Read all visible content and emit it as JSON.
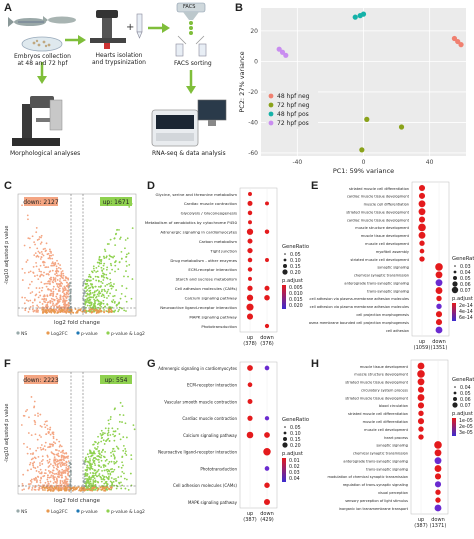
{
  "panel_a": {
    "letter": "A",
    "labels": {
      "embryo": "Embryos collection\nat 48 and 72 hpf",
      "hearts": "Hearts isolation\nand trypsinization",
      "facs": "FACS sorting",
      "facs_top": "FACS",
      "gfp": "GFP",
      "morph": "Morphological analyses",
      "rnaseq": "RNA-seq & data analysis"
    }
  },
  "panel_b": {
    "letter": "B",
    "chart_data": {
      "type": "scatter",
      "xlabel": "PC1: 59% variance",
      "ylabel": "PC2: 27% variance",
      "xticks": [
        -40,
        0,
        40
      ],
      "yticks": [
        -60,
        -40,
        -20,
        0,
        20
      ],
      "xlim": [
        -62,
        62
      ],
      "ylim": [
        -62,
        35
      ],
      "legend": "bottom-left",
      "series": [
        {
          "name": "48 hpf neg",
          "color": "#f08070",
          "points": [
            [
              55,
              15
            ],
            [
              57,
              13
            ],
            [
              59,
              11
            ]
          ]
        },
        {
          "name": "72 hpf neg",
          "color": "#8aa21a",
          "points": [
            [
              2,
              -38
            ],
            [
              23,
              -43
            ],
            [
              -1,
              -58
            ]
          ]
        },
        {
          "name": "48 hpf pos",
          "color": "#15b2a8",
          "points": [
            [
              -5,
              29
            ],
            [
              -2,
              30
            ],
            [
              0,
              31
            ]
          ]
        },
        {
          "name": "72 hpf pos",
          "color": "#c98df0",
          "points": [
            [
              -47,
              4
            ],
            [
              -49,
              6
            ],
            [
              -51,
              8
            ]
          ]
        }
      ]
    }
  },
  "panel_c": {
    "letter": "C",
    "down_label": "down: 2127",
    "up_label": "up: 1671",
    "xlabel": "log2 fold change",
    "ylabel": "-log10 adjusted p value",
    "legend": [
      "NS",
      "Log2FC",
      "p-value",
      "p-value & Log2FC"
    ]
  },
  "panel_f": {
    "letter": "F",
    "down_label": "down: 2223",
    "up_label": "up: 554",
    "xlabel": "log2 fold change",
    "ylabel": "-log10 adjusted p value",
    "legend": [
      "NS",
      "Log2FC",
      "p-value",
      "p-value & Log2FC"
    ]
  },
  "panel_d": {
    "letter": "D",
    "chart_data": {
      "type": "scatter",
      "columns": [
        "up\n(378)",
        "down\n(376)"
      ],
      "size_legend_title": "GeneRatio",
      "size_legend": [
        "0.05",
        "0.10",
        "0.15",
        "0.20"
      ],
      "color_legend_title": "p.adjust",
      "color_legend": [
        "0.005",
        "0.010",
        "0.015",
        "0.020"
      ],
      "terms": [
        {
          "label": "Glycine, serine and threonine metabolism",
          "up": 0.06,
          "down": null
        },
        {
          "label": "Cardiac muscle contraction",
          "up": 0.1,
          "down": 0.06
        },
        {
          "label": "Glycolysis / Gluconeogenesis",
          "up": 0.08,
          "down": null
        },
        {
          "label": "Metabolism of xenobiotics by cytochrome P450",
          "up": 0.06,
          "down": null
        },
        {
          "label": "Adrenergic signaling in cardiomyocytes",
          "up": 0.15,
          "down": 0.08
        },
        {
          "label": "Carbon metabolism",
          "up": 0.1,
          "down": null
        },
        {
          "label": "Tight junction",
          "up": 0.11,
          "down": null
        },
        {
          "label": "Drug metabolism - other enzymes",
          "up": 0.08,
          "down": 0.06
        },
        {
          "label": "ECM-receptor interaction",
          "up": 0.08,
          "down": null
        },
        {
          "label": "Starch and sucrose metabolism",
          "up": 0.06,
          "down": null
        },
        {
          "label": "Cell adhesion molecules (CAMs)",
          "up": 0.11,
          "down": 0.1
        },
        {
          "label": "Calcium signaling pathway",
          "up": 0.15,
          "down": 0.12
        },
        {
          "label": "Neuroactive ligand-receptor interaction",
          "up": 0.18,
          "down": null
        },
        {
          "label": "MAPK signaling pathway",
          "up": 0.14,
          "down": null
        },
        {
          "label": "Phototransduction",
          "up": null,
          "down": 0.07
        }
      ]
    }
  },
  "panel_e": {
    "letter": "E",
    "chart_data": {
      "type": "scatter",
      "columns": [
        "up\n(1059)",
        "down\n(1351)"
      ],
      "size_legend_title": "GeneRatio",
      "size_legend": [
        "0.03",
        "0.04",
        "0.05",
        "0.06",
        "0.07"
      ],
      "color_legend_title": "p.adjust",
      "color_legend": [
        "2e-14",
        "4e-14",
        "6e-14"
      ],
      "terms": [
        {
          "label": "striated muscle cell differentiation",
          "up": 0.05,
          "down": null
        },
        {
          "label": "cardiac muscle tissue development",
          "up": 0.05,
          "down": null
        },
        {
          "label": "muscle cell differentiation",
          "up": 0.06,
          "down": null
        },
        {
          "label": "striated muscle tissue development",
          "up": 0.06,
          "down": null
        },
        {
          "label": "cardiac muscle tissue development",
          "up": 0.05,
          "down": null
        },
        {
          "label": "muscle structure development",
          "up": 0.07,
          "down": null
        },
        {
          "label": "muscle tissue development",
          "up": 0.06,
          "down": null
        },
        {
          "label": "muscle cell development",
          "up": 0.04,
          "down": null
        },
        {
          "label": "myofibril assembly",
          "up": 0.03,
          "down": null
        },
        {
          "label": "striated muscle cell development",
          "up": 0.04,
          "down": null
        },
        {
          "label": "synaptic signaling",
          "up": null,
          "down": 0.07
        },
        {
          "label": "chemical synaptic transmission",
          "up": null,
          "down": 0.06
        },
        {
          "label": "anterograde trans-synaptic signaling",
          "up": null,
          "down": 0.06
        },
        {
          "label": "trans-synaptic signaling",
          "up": null,
          "down": 0.06
        },
        {
          "label": "cell-cell adhesion via plasma-membrane adhesion molecules",
          "up": null,
          "down": 0.04
        },
        {
          "label": "homophilic cell adhesion via plasma membrane adhesion molecules",
          "up": null,
          "down": 0.04
        },
        {
          "label": "cell projection morphogenesis",
          "up": null,
          "down": 0.05
        },
        {
          "label": "plasma membrane bounded cell projection morphogenesis",
          "up": null,
          "down": 0.05
        },
        {
          "label": "cell adhesion",
          "up": null,
          "down": 0.06
        }
      ]
    }
  },
  "panel_g": {
    "letter": "G",
    "chart_data": {
      "type": "scatter",
      "columns": [
        "up\n(387)",
        "down\n(429)"
      ],
      "size_legend_title": "GeneRatio",
      "size_legend": [
        "0.05",
        "0.10",
        "0.15",
        "0.20"
      ],
      "color_legend_title": "p.adjust",
      "color_legend": [
        "0.01",
        "0.02",
        "0.03",
        "0.04"
      ],
      "terms": [
        {
          "label": "Adrenergic signaling in cardiomyocytes",
          "up": 0.12,
          "down": 0.08
        },
        {
          "label": "ECM-receptor interaction",
          "up": 0.08,
          "down": null
        },
        {
          "label": "Vascular smooth muscle contraction",
          "up": 0.09,
          "down": null
        },
        {
          "label": "Cardiac muscle contraction",
          "up": 0.1,
          "down": 0.07
        },
        {
          "label": "Calcium signaling pathway",
          "up": 0.15,
          "down": 0.12
        },
        {
          "label": "Neuroactive ligand-receptor interaction",
          "up": null,
          "down": 0.18
        },
        {
          "label": "Phototransduction",
          "up": null,
          "down": 0.08
        },
        {
          "label": "Cell adhesion molecules (CAMs)",
          "up": null,
          "down": 0.11
        },
        {
          "label": "MAPK signaling pathway",
          "up": null,
          "down": 0.13
        }
      ]
    }
  },
  "panel_h": {
    "letter": "H",
    "chart_data": {
      "type": "scatter",
      "columns": [
        "up\n(387)",
        "down\n(1371)"
      ],
      "size_legend_title": "GeneRatio",
      "size_legend": [
        "0.04",
        "0.05",
        "0.06",
        "0.07"
      ],
      "color_legend_title": "p.adjust",
      "color_legend": [
        "1e-05",
        "2e-05",
        "3e-05"
      ],
      "terms": [
        {
          "label": "muscle tissue development",
          "up": 0.06,
          "down": null
        },
        {
          "label": "muscle structure development",
          "up": 0.07,
          "down": null
        },
        {
          "label": "striated muscle tissue development",
          "up": 0.06,
          "down": null
        },
        {
          "label": "circulatory system process",
          "up": 0.05,
          "down": null
        },
        {
          "label": "striated muscle tissue development",
          "up": 0.06,
          "down": null
        },
        {
          "label": "blood circulation",
          "up": 0.05,
          "down": null
        },
        {
          "label": "striated muscle cell differentiation",
          "up": 0.04,
          "down": null
        },
        {
          "label": "muscle cell differentiation",
          "up": 0.05,
          "down": null
        },
        {
          "label": "muscle cell development",
          "up": 0.04,
          "down": null
        },
        {
          "label": "heart process",
          "up": 0.04,
          "down": null
        },
        {
          "label": "synaptic signaling",
          "up": null,
          "down": 0.07
        },
        {
          "label": "chemical synaptic transmission",
          "up": null,
          "down": 0.06
        },
        {
          "label": "anterograde trans-synaptic signaling",
          "up": null,
          "down": 0.06
        },
        {
          "label": "trans-synaptic signaling",
          "up": null,
          "down": 0.06
        },
        {
          "label": "modulation of chemical synaptic transmission",
          "up": null,
          "down": 0.05
        },
        {
          "label": "regulation of trans-synaptic signaling",
          "up": null,
          "down": 0.05
        },
        {
          "label": "visual perception",
          "up": null,
          "down": 0.04
        },
        {
          "label": "sensory perception of light stimulus",
          "up": null,
          "down": 0.04
        },
        {
          "label": "inorganic ion transmembrane transport",
          "up": null,
          "down": 0.06
        }
      ]
    }
  }
}
